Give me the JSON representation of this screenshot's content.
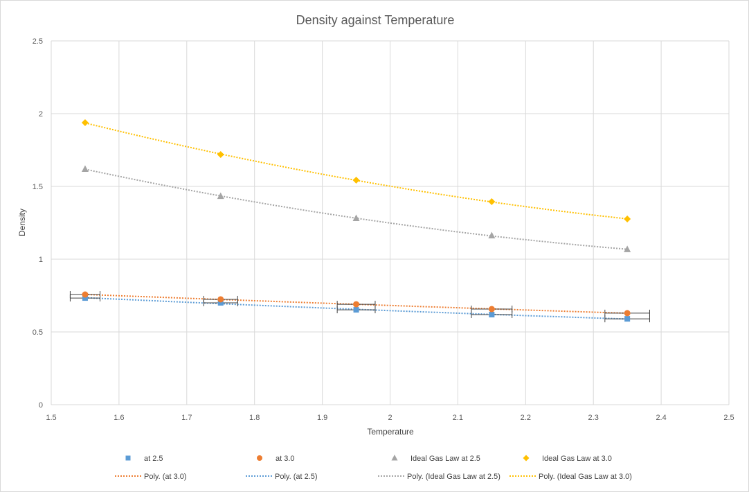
{
  "chart_data": {
    "type": "scatter",
    "title": "Density against Temperature",
    "xlabel": "Temperature",
    "ylabel": "Density",
    "xlim": [
      1.5,
      2.5
    ],
    "ylim": [
      0,
      2.5
    ],
    "xticks": [
      "1.5",
      "1.6",
      "1.7",
      "1.8",
      "1.9",
      "2",
      "2.1",
      "2.2",
      "2.3",
      "2.4",
      "2.5"
    ],
    "yticks": [
      "0",
      "0.5",
      "1",
      "1.5",
      "2",
      "2.5"
    ],
    "grid": true,
    "legend_position": "bottom",
    "series": [
      {
        "name": "at 2.5",
        "marker": "square",
        "color": "#5b9bd5",
        "x": [
          1.55,
          1.75,
          1.95,
          2.15,
          2.35
        ],
        "y": [
          0.733,
          0.7,
          0.652,
          0.619,
          0.59
        ],
        "x_error": [
          0.022,
          0.025,
          0.028,
          0.03,
          0.033
        ]
      },
      {
        "name": "at 3.0",
        "marker": "circle",
        "color": "#ed7d31",
        "x": [
          1.55,
          1.75,
          1.95,
          2.15,
          2.35
        ],
        "y": [
          0.757,
          0.724,
          0.69,
          0.657,
          0.629
        ],
        "x_error": [
          0.022,
          0.025,
          0.028,
          0.03,
          0.033
        ]
      },
      {
        "name": "Ideal Gas Law at 2.5",
        "marker": "triangle",
        "color": "#a5a5a5",
        "x": [
          1.55,
          1.75,
          1.95,
          2.15,
          2.35
        ],
        "y": [
          1.619,
          1.433,
          1.281,
          1.162,
          1.067
        ]
      },
      {
        "name": "Ideal Gas Law at 3.0",
        "marker": "diamond",
        "color": "#ffc000",
        "x": [
          1.55,
          1.75,
          1.95,
          2.15,
          2.35
        ],
        "y": [
          1.938,
          1.719,
          1.543,
          1.395,
          1.276
        ]
      }
    ],
    "trendlines": [
      {
        "name": "Poly. (at 3.0)",
        "of": "at 3.0",
        "color": "#ed7d31"
      },
      {
        "name": "Poly. (at 2.5)",
        "of": "at 2.5",
        "color": "#5b9bd5"
      },
      {
        "name": "Poly. (Ideal Gas Law at 2.5)",
        "of": "Ideal Gas Law at 2.5",
        "color": "#a5a5a5"
      },
      {
        "name": "Poly. (Ideal Gas Law at 3.0)",
        "of": "Ideal Gas Law at 3.0",
        "color": "#ffc000"
      }
    ]
  }
}
